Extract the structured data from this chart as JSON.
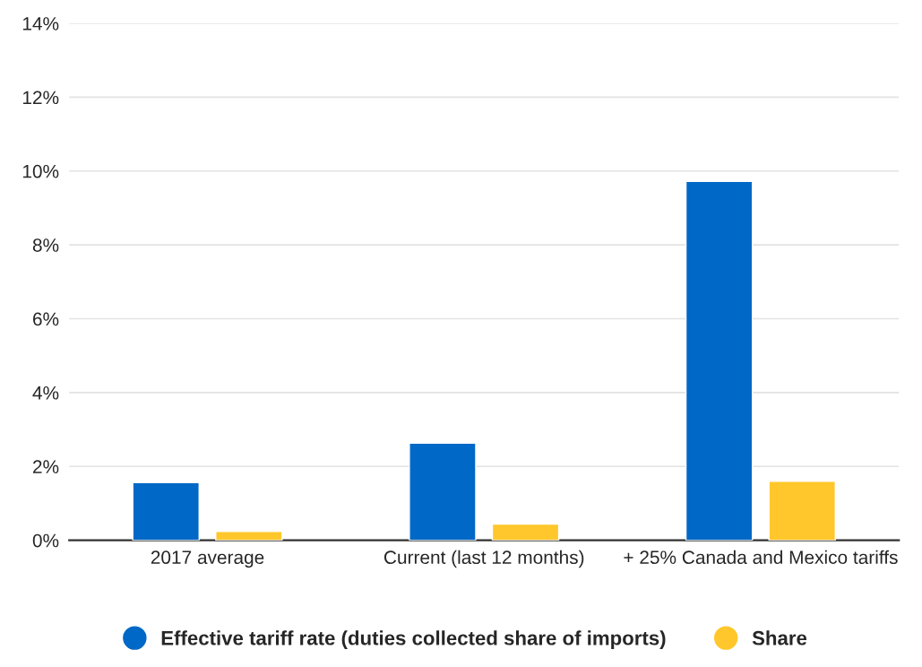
{
  "chart_data": {
    "type": "bar",
    "categories": [
      "2017 average",
      "Current (last 12 months)",
      "+ 25% Canada and Mexico tariffs"
    ],
    "series": [
      {
        "name": "Effective tariff rate (duties collected share of imports)",
        "color": "#0068c6",
        "values": [
          1.56,
          2.63,
          9.72
        ]
      },
      {
        "name": "Share",
        "color": "#ffc72c",
        "values": [
          0.24,
          0.44,
          1.6
        ]
      }
    ],
    "ylim": [
      0,
      14
    ],
    "yticks": [
      {
        "value": 0,
        "label": "0%"
      },
      {
        "value": 2,
        "label": "2%"
      },
      {
        "value": 4,
        "label": "4%"
      },
      {
        "value": 6,
        "label": "6%"
      },
      {
        "value": 8,
        "label": "8%"
      },
      {
        "value": 10,
        "label": "10%"
      },
      {
        "value": 12,
        "label": "12%"
      },
      {
        "value": 14,
        "label": "14%"
      }
    ],
    "grid": "y",
    "legend": "bottom"
  }
}
